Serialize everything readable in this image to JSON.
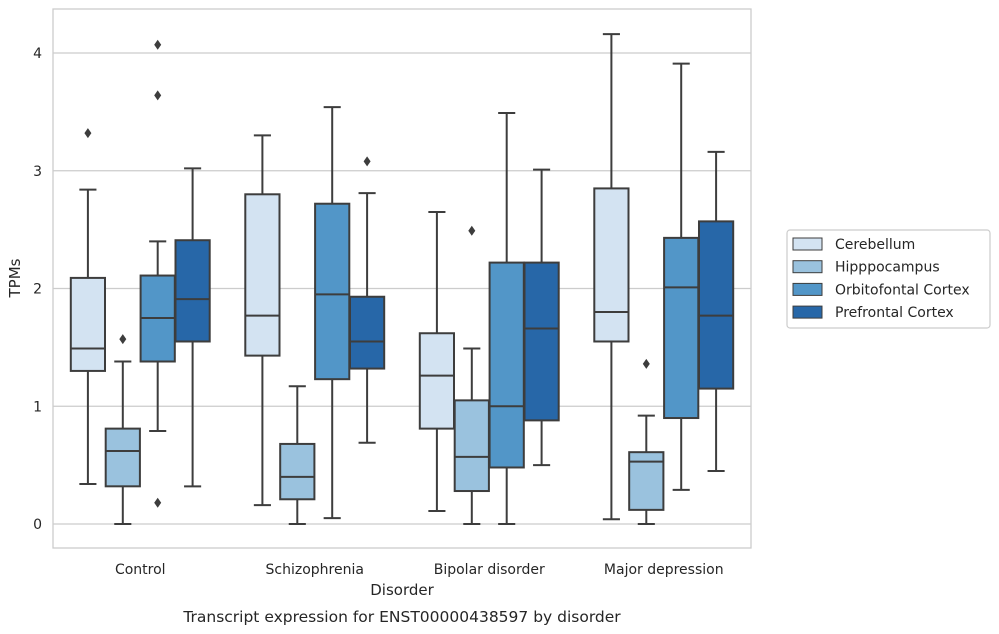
{
  "chart_data": {
    "type": "box",
    "caption": "Transcript expression for ENST00000438597 by disorder",
    "xlabel": "Disorder",
    "ylabel": "TPMs",
    "ylim": [
      -0.2,
      4.37
    ],
    "yticks": [
      0,
      1,
      2,
      3,
      4
    ],
    "grid": "horizontal",
    "legend_position": "right",
    "categories": [
      "Control",
      "Schizophrenia",
      "Bipolar disorder",
      "Major depression"
    ],
    "series": [
      {
        "name": "Cerebellum",
        "color": "#d3e3f2",
        "boxes": [
          {
            "whislo": 0.34,
            "q1": 1.3,
            "med": 1.49,
            "q3": 2.09,
            "whishi": 2.84,
            "fliers": [
              3.32
            ]
          },
          {
            "whislo": 0.16,
            "q1": 1.43,
            "med": 1.77,
            "q3": 2.8,
            "whishi": 3.3,
            "fliers": []
          },
          {
            "whislo": 0.11,
            "q1": 0.81,
            "med": 1.26,
            "q3": 1.62,
            "whishi": 2.65,
            "fliers": []
          },
          {
            "whislo": 0.04,
            "q1": 1.55,
            "med": 1.8,
            "q3": 2.85,
            "whishi": 4.16,
            "fliers": []
          }
        ]
      },
      {
        "name": "Hipppocampus",
        "color": "#9ac2de",
        "boxes": [
          {
            "whislo": 0.0,
            "q1": 0.32,
            "med": 0.62,
            "q3": 0.81,
            "whishi": 1.38,
            "fliers": [
              1.57
            ]
          },
          {
            "whislo": 0.0,
            "q1": 0.21,
            "med": 0.4,
            "q3": 0.68,
            "whishi": 1.17,
            "fliers": []
          },
          {
            "whislo": 0.0,
            "q1": 0.28,
            "med": 0.57,
            "q3": 1.05,
            "whishi": 1.49,
            "fliers": [
              2.49
            ]
          },
          {
            "whislo": 0.0,
            "q1": 0.12,
            "med": 0.53,
            "q3": 0.61,
            "whishi": 0.92,
            "fliers": [
              1.36
            ]
          }
        ]
      },
      {
        "name": "Orbitofontal Cortex",
        "color": "#5296c8",
        "boxes": [
          {
            "whislo": 0.79,
            "q1": 1.38,
            "med": 1.75,
            "q3": 2.11,
            "whishi": 2.4,
            "fliers": [
              0.18,
              3.64,
              4.07
            ]
          },
          {
            "whislo": 0.05,
            "q1": 1.23,
            "med": 1.95,
            "q3": 2.72,
            "whishi": 3.54,
            "fliers": []
          },
          {
            "whislo": 0.0,
            "q1": 0.48,
            "med": 1.0,
            "q3": 2.22,
            "whishi": 3.49,
            "fliers": []
          },
          {
            "whislo": 0.29,
            "q1": 0.9,
            "med": 2.01,
            "q3": 2.43,
            "whishi": 3.91,
            "fliers": []
          }
        ]
      },
      {
        "name": "Prefrontal Cortex",
        "color": "#2767a8",
        "boxes": [
          {
            "whislo": 0.32,
            "q1": 1.55,
            "med": 1.91,
            "q3": 2.41,
            "whishi": 3.02,
            "fliers": []
          },
          {
            "whislo": 0.69,
            "q1": 1.32,
            "med": 1.55,
            "q3": 1.93,
            "whishi": 2.81,
            "fliers": [
              3.08
            ]
          },
          {
            "whislo": 0.5,
            "q1": 0.88,
            "med": 1.66,
            "q3": 2.22,
            "whishi": 3.01,
            "fliers": []
          },
          {
            "whislo": 0.45,
            "q1": 1.15,
            "med": 1.77,
            "q3": 2.57,
            "whishi": 3.16,
            "fliers": []
          }
        ]
      }
    ]
  }
}
